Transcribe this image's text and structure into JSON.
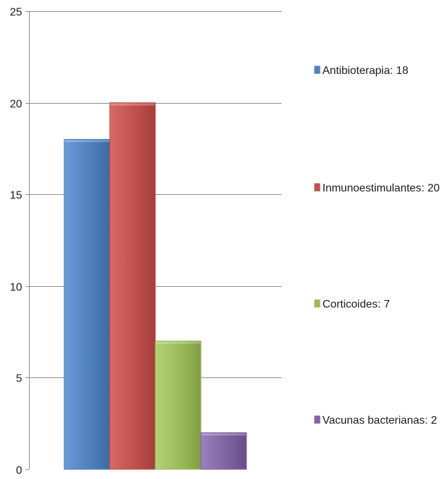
{
  "chart_data": {
    "type": "bar",
    "categories": [
      "Antibioterapia",
      "Inmunoestimulantes",
      "Corticoides",
      "Vacunas bacterianas"
    ],
    "values": [
      18,
      20,
      7,
      2
    ],
    "legend": [
      {
        "label": "Antibioterapia: 18",
        "color": "#4f81bd"
      },
      {
        "label": "Inmunoestimulantes: 20",
        "color": "#c0504d"
      },
      {
        "label": "Corticoides: 7",
        "color": "#9bbb59"
      },
      {
        "label": "Vacunas bacterianas: 2",
        "color": "#8064a2"
      }
    ],
    "colors": [
      "#4f81bd",
      "#c0504d",
      "#9bbb59",
      "#8064a2"
    ],
    "y_ticks": [
      "0",
      "5",
      "10",
      "15",
      "20",
      "25"
    ],
    "ylim": [
      0,
      25
    ],
    "grid": true,
    "legend_position": "right",
    "title": "",
    "xlabel": "",
    "ylabel": ""
  }
}
